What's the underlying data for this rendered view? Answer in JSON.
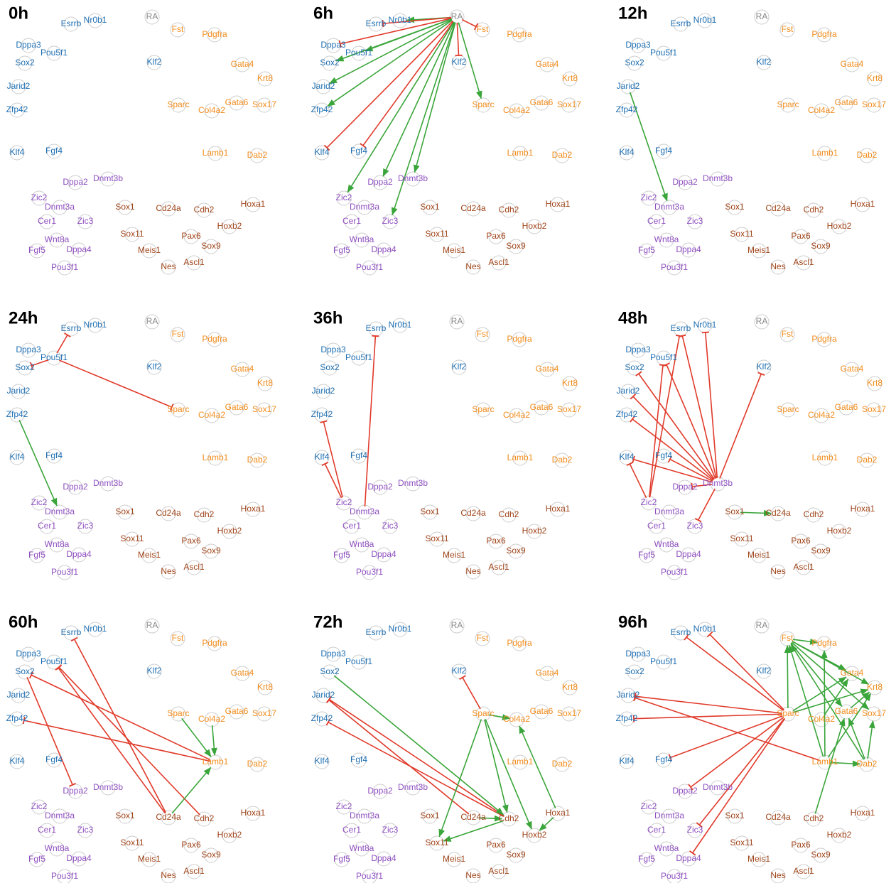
{
  "nodes": [
    {
      "label": "Esrrb",
      "color": "#1f6fb2"
    },
    {
      "label": "Nr0b1",
      "color": "#1f6fb2"
    },
    {
      "label": "RA",
      "color": "#888888"
    },
    {
      "label": "Fst",
      "color": "#f28c1c"
    },
    {
      "label": "Pdgfra",
      "color": "#f28c1c"
    },
    {
      "label": "Dppa3",
      "color": "#1f6fb2"
    },
    {
      "label": "Pou5f1",
      "color": "#1f6fb2"
    },
    {
      "label": "Sox2",
      "color": "#1f6fb2"
    },
    {
      "label": "Klf2",
      "color": "#1f6fb2"
    },
    {
      "label": "Gata4",
      "color": "#f28c1c"
    },
    {
      "label": "Krt8",
      "color": "#f28c1c"
    },
    {
      "label": "Jarid2",
      "color": "#1f6fb2"
    },
    {
      "label": "Sparc",
      "color": "#f28c1c"
    },
    {
      "label": "Col4a2",
      "color": "#f28c1c"
    },
    {
      "label": "Gata6",
      "color": "#f28c1c"
    },
    {
      "label": "Sox17",
      "color": "#f28c1c"
    },
    {
      "label": "Zfp42",
      "color": "#1f6fb2"
    },
    {
      "label": "Klf4",
      "color": "#1f6fb2"
    },
    {
      "label": "Fgf4",
      "color": "#1f6fb2"
    },
    {
      "label": "Lamb1",
      "color": "#f28c1c"
    },
    {
      "label": "Dab2",
      "color": "#f28c1c"
    },
    {
      "label": "Dppa2",
      "color": "#8e4fc0"
    },
    {
      "label": "Dnmt3b",
      "color": "#8e4fc0"
    },
    {
      "label": "Zic2",
      "color": "#8e4fc0"
    },
    {
      "label": "Dnmt3a",
      "color": "#8e4fc0"
    },
    {
      "label": "Sox1",
      "color": "#a0451a"
    },
    {
      "label": "Cd24a",
      "color": "#a0451a"
    },
    {
      "label": "Cdh2",
      "color": "#a0451a"
    },
    {
      "label": "Hoxa1",
      "color": "#a0451a"
    },
    {
      "label": "Cer1",
      "color": "#8e4fc0"
    },
    {
      "label": "Zic3",
      "color": "#8e4fc0"
    },
    {
      "label": "Hoxb2",
      "color": "#a0451a"
    },
    {
      "label": "Wnt8a",
      "color": "#8e4fc0"
    },
    {
      "label": "Sox11",
      "color": "#a0451a"
    },
    {
      "label": "Pax6",
      "color": "#a0451a"
    },
    {
      "label": "Fgf5",
      "color": "#8e4fc0"
    },
    {
      "label": "Dppa4",
      "color": "#8e4fc0"
    },
    {
      "label": "Meis1",
      "color": "#a0451a"
    },
    {
      "label": "Sox9",
      "color": "#a0451a"
    },
    {
      "label": "Pou3f1",
      "color": "#8e4fc0"
    },
    {
      "label": "Nes",
      "color": "#a0451a"
    },
    {
      "label": "Ascl1",
      "color": "#a0451a"
    }
  ],
  "edge_colors": {
    "arrow": "#3aa53a",
    "bar": "#e03a2a"
  },
  "panels": [
    {
      "title": "0h",
      "edges": []
    },
    {
      "title": "6h",
      "edges": [
        [
          2,
          1,
          "arrow"
        ],
        [
          2,
          0,
          "bar"
        ],
        [
          2,
          3,
          "bar"
        ],
        [
          2,
          5,
          "bar"
        ],
        [
          2,
          6,
          "arrow"
        ],
        [
          2,
          7,
          "arrow"
        ],
        [
          2,
          11,
          "arrow"
        ],
        [
          2,
          16,
          "arrow"
        ],
        [
          2,
          17,
          "bar"
        ],
        [
          2,
          18,
          "bar"
        ],
        [
          2,
          8,
          "bar"
        ],
        [
          2,
          12,
          "arrow"
        ],
        [
          2,
          23,
          "arrow"
        ],
        [
          2,
          21,
          "arrow"
        ],
        [
          2,
          22,
          "arrow"
        ],
        [
          2,
          30,
          "arrow"
        ]
      ]
    },
    {
      "title": "12h",
      "edges": [
        [
          11,
          24,
          "arrow"
        ]
      ]
    },
    {
      "title": "24h",
      "edges": [
        [
          6,
          0,
          "bar"
        ],
        [
          6,
          7,
          "bar"
        ],
        [
          6,
          12,
          "bar"
        ],
        [
          16,
          24,
          "arrow"
        ]
      ]
    },
    {
      "title": "36h",
      "edges": [
        [
          24,
          0,
          "bar"
        ],
        [
          23,
          16,
          "bar"
        ],
        [
          23,
          17,
          "bar"
        ]
      ]
    },
    {
      "title": "48h",
      "edges": [
        [
          22,
          0,
          "bar"
        ],
        [
          22,
          1,
          "bar"
        ],
        [
          22,
          8,
          "bar"
        ],
        [
          22,
          6,
          "bar"
        ],
        [
          22,
          7,
          "bar"
        ],
        [
          22,
          11,
          "bar"
        ],
        [
          22,
          16,
          "bar"
        ],
        [
          22,
          17,
          "bar"
        ],
        [
          22,
          18,
          "bar"
        ],
        [
          22,
          30,
          "bar"
        ],
        [
          22,
          21,
          "bar"
        ],
        [
          23,
          0,
          "bar"
        ],
        [
          23,
          6,
          "bar"
        ],
        [
          23,
          17,
          "bar"
        ],
        [
          25,
          26,
          "arrow"
        ]
      ]
    },
    {
      "title": "60h",
      "edges": [
        [
          26,
          0,
          "bar"
        ],
        [
          26,
          6,
          "bar"
        ],
        [
          27,
          6,
          "bar"
        ],
        [
          19,
          7,
          "bar"
        ],
        [
          19,
          16,
          "bar"
        ],
        [
          7,
          21,
          "bar"
        ],
        [
          26,
          19,
          "arrow"
        ],
        [
          12,
          19,
          "arrow"
        ],
        [
          13,
          19,
          "arrow"
        ]
      ]
    },
    {
      "title": "72h",
      "edges": [
        [
          12,
          8,
          "bar"
        ],
        [
          27,
          11,
          "bar"
        ],
        [
          26,
          11,
          "bar"
        ],
        [
          27,
          16,
          "bar"
        ],
        [
          7,
          27,
          "arrow"
        ],
        [
          12,
          13,
          "arrow"
        ],
        [
          12,
          33,
          "arrow"
        ],
        [
          12,
          27,
          "arrow"
        ],
        [
          12,
          31,
          "arrow"
        ],
        [
          26,
          27,
          "arrow"
        ],
        [
          27,
          33,
          "arrow"
        ],
        [
          28,
          13,
          "arrow"
        ],
        [
          28,
          31,
          "arrow"
        ]
      ]
    },
    {
      "title": "96h",
      "edges": [
        [
          12,
          0,
          "bar"
        ],
        [
          12,
          1,
          "bar"
        ],
        [
          12,
          11,
          "bar"
        ],
        [
          12,
          16,
          "bar"
        ],
        [
          12,
          18,
          "bar"
        ],
        [
          12,
          21,
          "bar"
        ],
        [
          12,
          30,
          "bar"
        ],
        [
          12,
          36,
          "bar"
        ],
        [
          19,
          11,
          "bar"
        ],
        [
          3,
          9,
          "arrow"
        ],
        [
          3,
          10,
          "arrow"
        ],
        [
          3,
          14,
          "arrow"
        ],
        [
          3,
          15,
          "arrow"
        ],
        [
          3,
          4,
          "arrow"
        ],
        [
          12,
          3,
          "arrow"
        ],
        [
          12,
          9,
          "arrow"
        ],
        [
          12,
          10,
          "arrow"
        ],
        [
          19,
          3,
          "arrow"
        ],
        [
          19,
          10,
          "arrow"
        ],
        [
          19,
          20,
          "arrow"
        ],
        [
          20,
          3,
          "arrow"
        ],
        [
          20,
          14,
          "arrow"
        ],
        [
          20,
          15,
          "arrow"
        ],
        [
          14,
          10,
          "arrow"
        ],
        [
          13,
          9,
          "arrow"
        ],
        [
          27,
          14,
          "arrow"
        ],
        [
          19,
          4,
          "arrow"
        ]
      ]
    }
  ]
}
